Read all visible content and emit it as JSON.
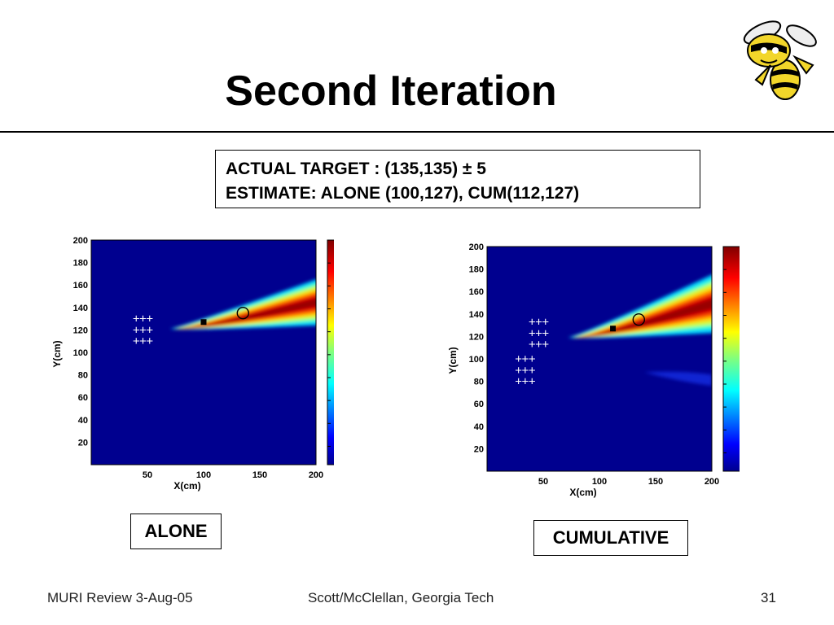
{
  "slide": {
    "title": "Second Iteration",
    "info_line1": "ACTUAL TARGET : (135,135) ± 5",
    "info_line2": "ESTIMATE: ALONE (100,127), CUM(112,127)",
    "footer_left": "MURI Review 3-Aug-05",
    "footer_center": "Scott/McClellan, Georgia Tech",
    "footer_right": "31",
    "logo": "yellow-jacket-mascot"
  },
  "colors": {
    "background_low": "#00008f",
    "high": "#8a0000"
  },
  "chart_data": [
    {
      "type": "heatmap",
      "caption": "ALONE",
      "xlabel": "X(cm)",
      "ylabel": "Y(cm)",
      "xlim": [
        0,
        200
      ],
      "ylim": [
        0,
        200
      ],
      "x_ticks": [
        50,
        100,
        150,
        200
      ],
      "y_ticks": [
        20,
        40,
        60,
        80,
        100,
        120,
        140,
        160,
        180,
        200
      ],
      "colorbar_ticks": [
        "-0.5",
        "-1",
        "-1.5",
        "-2",
        "-2.5",
        "-3",
        "-3.5",
        "-4",
        "-4.5"
      ],
      "colorbar_range": [
        -4.9,
        0
      ],
      "sensor_array": {
        "symbol": "+",
        "x": [
          40,
          46,
          52
        ],
        "y": [
          110,
          120,
          130
        ]
      },
      "estimate": {
        "x": 100,
        "y": 127
      },
      "actual_target": {
        "x": 135,
        "y": 135
      },
      "beam": {
        "apex": [
          70,
          121
        ],
        "upper_edge_at_200": 165,
        "lower_edge_at_200": 124
      }
    },
    {
      "type": "heatmap",
      "caption": "CUMULATIVE",
      "xlabel": "X(cm)",
      "ylabel": "Y(cm)",
      "xlim": [
        0,
        200
      ],
      "ylim": [
        0,
        200
      ],
      "x_ticks": [
        50,
        100,
        150,
        200
      ],
      "y_ticks": [
        20,
        40,
        60,
        80,
        100,
        120,
        140,
        160,
        180,
        200
      ],
      "colorbar_ticks": [
        "-0.5",
        "-1",
        "-1.5",
        "-2",
        "-2.5",
        "-3",
        "-3.5",
        "-4",
        "-4.5"
      ],
      "colorbar_range": [
        -4.9,
        0
      ],
      "sensor_array": [
        {
          "symbol": "+",
          "x": [
            40,
            46,
            52
          ],
          "y": [
            113,
            123,
            133
          ]
        },
        {
          "symbol": "+",
          "x": [
            28,
            34,
            40
          ],
          "y": [
            80,
            90,
            100
          ]
        }
      ],
      "estimate": {
        "x": 112,
        "y": 127
      },
      "actual_target": {
        "x": 135,
        "y": 135
      },
      "beam": {
        "apex": [
          72,
          119
        ],
        "upper_edge_at_200": 175,
        "lower_edge_at_200": 123
      }
    }
  ]
}
